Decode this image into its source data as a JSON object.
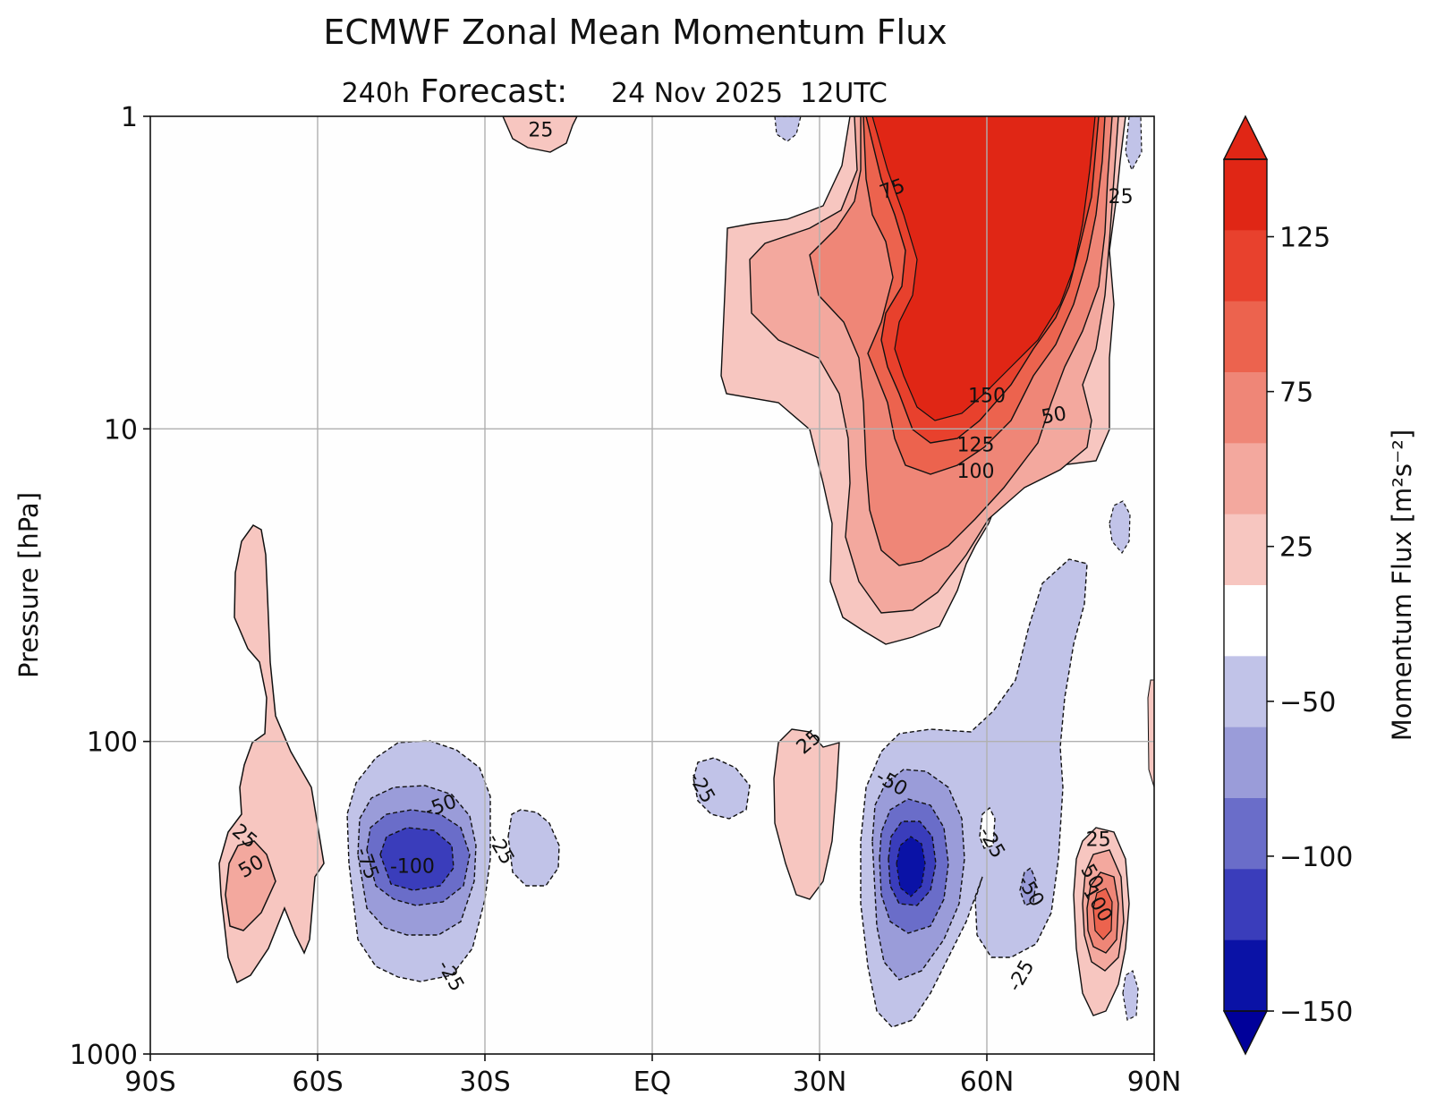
{
  "chart_data": {
    "type": "contour",
    "title": "ECMWF Zonal Mean Momentum Flux",
    "subtitle_hours": "240h",
    "subtitle_label": "Forecast:",
    "subtitle_date": "24 Nov 2025  12UTC",
    "xlabel": "",
    "ylabel": "Pressure [hPa]",
    "x_ticks": [
      "90S",
      "60S",
      "30S",
      "EQ",
      "30N",
      "60N",
      "90N"
    ],
    "x_tick_values": [
      -90,
      -60,
      -30,
      0,
      30,
      60,
      90
    ],
    "xlim": [
      -90,
      90
    ],
    "y_ticks": [
      "1",
      "10",
      "100",
      "1000"
    ],
    "y_tick_values": [
      1,
      10,
      100,
      1000
    ],
    "ylim": [
      1000,
      1
    ],
    "y_scale": "log",
    "grid": true,
    "colorbar": {
      "label": "Momentum Flux [m²s⁻²]",
      "tick_labels": [
        "125",
        "75",
        "25",
        "−50",
        "−100",
        "−150"
      ],
      "tick_values": [
        125,
        75,
        25,
        -50,
        -100,
        -150
      ],
      "levels": [
        -150,
        -125,
        -100,
        -75,
        -50,
        -25,
        25,
        50,
        75,
        100,
        125,
        150
      ],
      "colors": [
        "#0a12a6",
        "#3a3dbb",
        "#6a6dc9",
        "#9a9cd9",
        "#c1c3e8",
        "#ffffff",
        "#f7c6c0",
        "#f3a89e",
        "#ef8677",
        "#ec634e",
        "#e8412d",
        "#e02615"
      ],
      "extend": "both"
    },
    "regions": [
      {
        "name": "sh-high-lat-positive",
        "lat_range": [
          -78,
          -67
        ],
        "p_range": [
          20,
          600
        ],
        "max": 50,
        "sign": "positive"
      },
      {
        "name": "sh-midlat-negative",
        "lat_range": [
          -55,
          -30
        ],
        "p_range": [
          100,
          600
        ],
        "min": -100,
        "sign": "negative"
      },
      {
        "name": "sh-subtrop-negative",
        "lat_range": [
          -28,
          -17
        ],
        "p_range": [
          150,
          300
        ],
        "min": -25,
        "sign": "negative"
      },
      {
        "name": "sh-upper-positive",
        "lat_range": [
          -28,
          -13
        ],
        "p_range": [
          1,
          1.5
        ],
        "max": 25,
        "sign": "positive"
      },
      {
        "name": "nh-strat-jet-positive",
        "lat_range": [
          13,
          88
        ],
        "p_range": [
          1,
          60
        ],
        "max": 150,
        "sign": "positive"
      },
      {
        "name": "nh-tropics-negative",
        "lat_range": [
          7,
          17
        ],
        "p_range": [
          110,
          180
        ],
        "min": -25,
        "sign": "negative"
      },
      {
        "name": "nh-subtrop-positive",
        "lat_range": [
          21,
          34
        ],
        "p_range": [
          100,
          450
        ],
        "max": 25,
        "sign": "positive"
      },
      {
        "name": "nh-midlat-negative",
        "lat_range": [
          37,
          75
        ],
        "p_range": [
          30,
          900
        ],
        "min": -150,
        "sign": "negative"
      },
      {
        "name": "nh-polar-positive",
        "lat_range": [
          76,
          86
        ],
        "p_range": [
          200,
          850
        ],
        "max": 100,
        "sign": "positive"
      }
    ],
    "contour_labels": [
      {
        "text": "25",
        "lat": -20,
        "p": 1.1,
        "rot": 0
      },
      {
        "text": "75",
        "lat": 43,
        "p": 1.7,
        "rot": -20
      },
      {
        "text": "25",
        "lat": 84,
        "p": 1.8,
        "rot": 0
      },
      {
        "text": "150",
        "lat": 60,
        "p": 7.8,
        "rot": 0
      },
      {
        "text": "50",
        "lat": 72,
        "p": 9.0,
        "rot": -10
      },
      {
        "text": "125",
        "lat": 58,
        "p": 11.2,
        "rot": 0
      },
      {
        "text": "100",
        "lat": 58,
        "p": 13.6,
        "rot": 0
      },
      {
        "text": "25",
        "lat": 28,
        "p": 100,
        "rot": -40
      },
      {
        "text": "-25",
        "lat": 9,
        "p": 140,
        "rot": 60
      },
      {
        "text": "-50",
        "lat": 43,
        "p": 135,
        "rot": 30
      },
      {
        "text": "-25",
        "lat": 61,
        "p": 210,
        "rot": 60
      },
      {
        "text": "-50",
        "lat": 68,
        "p": 300,
        "rot": 60
      },
      {
        "text": "-25",
        "lat": 66,
        "p": 560,
        "rot": -60
      },
      {
        "text": "25",
        "lat": -73,
        "p": 200,
        "rot": 40
      },
      {
        "text": "50",
        "lat": -72,
        "p": 250,
        "rot": -30
      },
      {
        "text": "-50",
        "lat": -38,
        "p": 160,
        "rot": -20
      },
      {
        "text": "-75",
        "lat": -51,
        "p": 245,
        "rot": 70
      },
      {
        "text": "-100",
        "lat": -43,
        "p": 250,
        "rot": 0
      },
      {
        "text": "-25",
        "lat": -27,
        "p": 220,
        "rot": 60
      },
      {
        "text": "-25",
        "lat": -36,
        "p": 560,
        "rot": 60
      },
      {
        "text": "25",
        "lat": 80,
        "p": 205,
        "rot": 0
      },
      {
        "text": "50",
        "lat": 79,
        "p": 270,
        "rot": 60
      },
      {
        "text": "100",
        "lat": 80,
        "p": 330,
        "rot": 60
      }
    ]
  }
}
